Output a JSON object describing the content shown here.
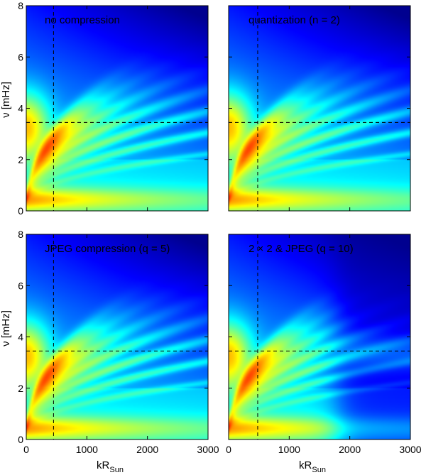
{
  "chart_data": [
    {
      "type": "heatmap",
      "title": "no compression",
      "xlabel": "",
      "ylabel": "ν [mHz]",
      "xlim": [
        0,
        3000
      ],
      "ylim": [
        0,
        8
      ],
      "ref_lines": {
        "x": 450,
        "y": 3.45
      },
      "high_k_suppression": 0.0
    },
    {
      "type": "heatmap",
      "title": "quantization (n = 2)",
      "xlabel": "",
      "ylabel": "",
      "xlim": [
        0,
        3000
      ],
      "ylim": [
        0,
        8
      ],
      "ref_lines": {
        "x": 480,
        "y": 3.45
      },
      "high_k_suppression": 0.0
    },
    {
      "type": "heatmap",
      "title": "JPEG compression (q = 5)",
      "xlabel": "kR",
      "xlabel_sub": "Sun",
      "ylabel": "ν [mHz]",
      "xlim": [
        0,
        3000
      ],
      "ylim": [
        0,
        8
      ],
      "ref_lines": {
        "x": 450,
        "y": 3.45
      },
      "high_k_suppression": 0.0
    },
    {
      "type": "heatmap",
      "title": "2 × 2 & JPEG (q = 10)",
      "xlabel": "kR",
      "xlabel_sub": "Sun",
      "ylabel": "",
      "xlim": [
        0,
        3000
      ],
      "ylim": [
        0,
        8
      ],
      "ref_lines": {
        "x": 480,
        "y": 3.45
      },
      "high_k_suppression": 1.0
    }
  ],
  "x_ticks": [
    "0",
    "1000",
    "2000",
    "3000"
  ],
  "y_ticks": [
    "0",
    "2",
    "4",
    "6",
    "8"
  ]
}
